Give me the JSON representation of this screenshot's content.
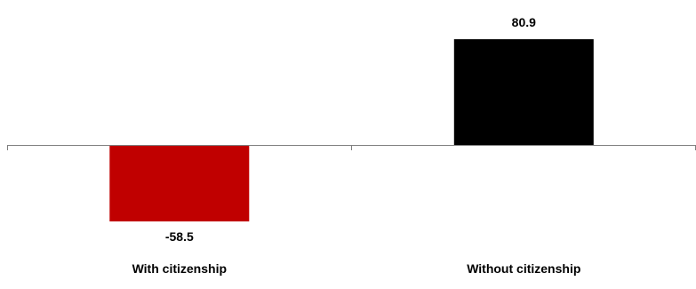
{
  "chart_data": {
    "type": "bar",
    "categories": [
      "With citizenship",
      "Without citizenship"
    ],
    "values": [
      -58.5,
      80.9
    ],
    "value_labels": [
      "-58.5",
      "80.9"
    ],
    "bar_colors": [
      "#c00000",
      "#000000"
    ],
    "axis_color": "#7f7f7f",
    "ylim": [
      -80,
      100
    ],
    "grid": false,
    "legend": "none"
  }
}
